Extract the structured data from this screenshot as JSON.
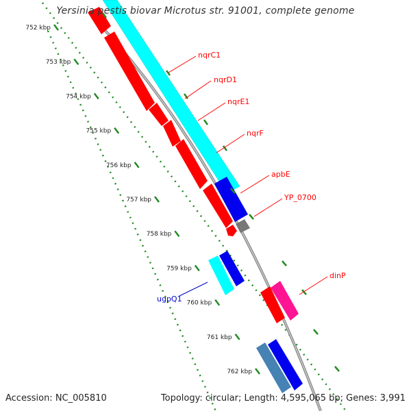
{
  "header": {
    "title": "Yersinia pestis biovar Microtus str. 91001, complete genome"
  },
  "footer": {
    "accession": "Accession: NC_005810",
    "summary": "Topology: circular; Length: 4,595,065 bp; Genes: 3,991"
  },
  "scale": {
    "ticks": [
      "752 kbp",
      "753 kbp",
      "754 kbp",
      "755 kbp",
      "756 kbp",
      "757 kbp",
      "758 kbp",
      "759 kbp",
      "760 kbp",
      "761 kbp",
      "762 kbp"
    ]
  },
  "gene_labels": [
    {
      "name": "nqrC1",
      "color": "#ff0000"
    },
    {
      "name": "nqrD1",
      "color": "#ff0000"
    },
    {
      "name": "nqrE1",
      "color": "#ff0000"
    },
    {
      "name": "nqrF",
      "color": "#ff0000"
    },
    {
      "name": "apbE",
      "color": "#ff0000"
    },
    {
      "name": "YP_0700",
      "color": "#ff0000"
    },
    {
      "name": "dinP",
      "color": "#ff0000"
    },
    {
      "name": "ugpQ1",
      "color": "#0000cc"
    }
  ],
  "colors": {
    "cds_forward": "#ff0000",
    "cds_cyan": "#00ffff",
    "cds_blue": "#0000ee",
    "cds_magenta": "#ff1493",
    "cds_steelblue": "#4682b4",
    "backbone": "#999999",
    "tick": "#228b22"
  }
}
